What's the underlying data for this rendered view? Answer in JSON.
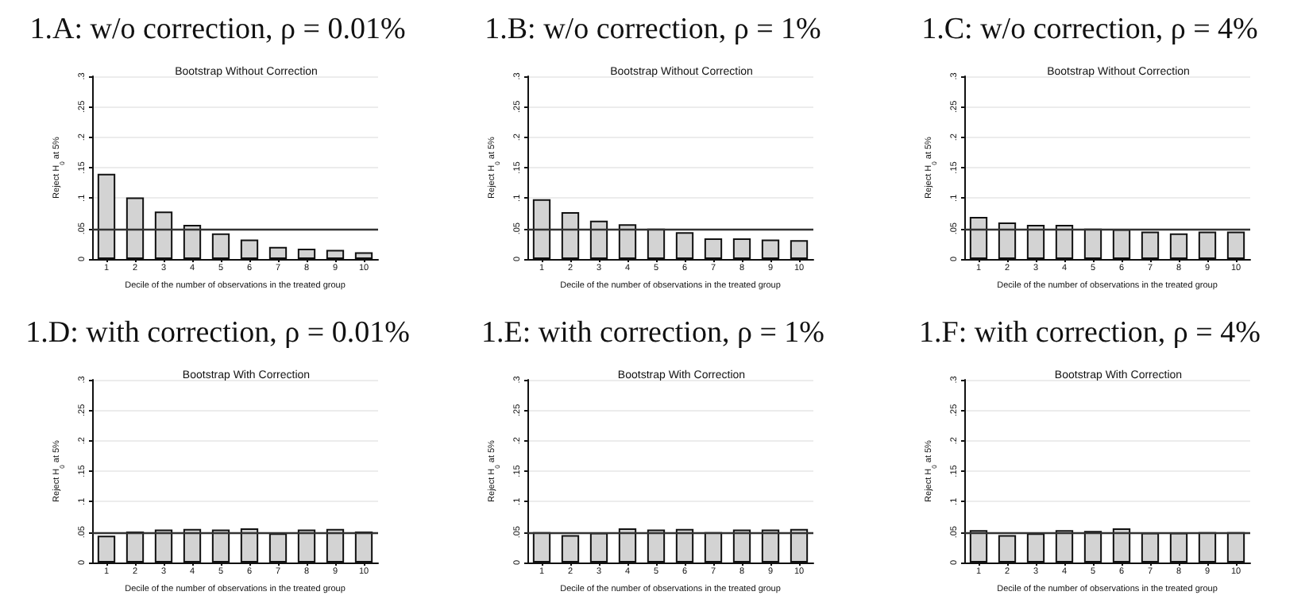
{
  "chart_data": [
    {
      "type": "bar",
      "title": "1.A: w/o correction, ρ = 0.01%",
      "subtitle": "Bootstrap Without Correction",
      "xlabel": "Decile of the number of observations in the treated group",
      "ylabel": "Reject H$_{0}$ at 5%",
      "categories": [
        "1",
        "2",
        "3",
        "4",
        "5",
        "6",
        "7",
        "8",
        "9",
        "10"
      ],
      "color": "#d3d3d3",
      "values": [
        0.14,
        0.101,
        0.078,
        0.056,
        0.042,
        0.032,
        0.02,
        0.017,
        0.015,
        0.011
      ],
      "ylim": [
        0,
        0.3
      ],
      "yticks": [
        {
          "value": 0,
          "label": "0"
        },
        {
          "value": 0.05,
          "label": ".05"
        },
        {
          "value": 0.1,
          "label": ".1"
        },
        {
          "value": 0.15,
          "label": ".15"
        },
        {
          "value": 0.2,
          "label": ".2"
        },
        {
          "value": 0.25,
          "label": ".25"
        },
        {
          "value": 0.3,
          "label": ".3"
        }
      ],
      "grid": "y",
      "ref_lines": [
        {
          "axis": "y",
          "value": 0.05,
          "color": "#333333"
        }
      ]
    },
    {
      "type": "bar",
      "title": "1.B: w/o correction, ρ = 1%",
      "subtitle": "Bootstrap Without Correction",
      "xlabel": "Decile of the number of observations in the treated group",
      "ylabel": "Reject H$_{0}$ at 5%",
      "categories": [
        "1",
        "2",
        "3",
        "4",
        "5",
        "6",
        "7",
        "8",
        "9",
        "10"
      ],
      "color": "#d3d3d3",
      "values": [
        0.098,
        0.077,
        0.063,
        0.057,
        0.05,
        0.044,
        0.034,
        0.034,
        0.032,
        0.031
      ],
      "ylim": [
        0,
        0.3
      ],
      "yticks": [
        {
          "value": 0,
          "label": "0"
        },
        {
          "value": 0.05,
          "label": ".05"
        },
        {
          "value": 0.1,
          "label": ".1"
        },
        {
          "value": 0.15,
          "label": ".15"
        },
        {
          "value": 0.2,
          "label": ".2"
        },
        {
          "value": 0.25,
          "label": ".25"
        },
        {
          "value": 0.3,
          "label": ".3"
        }
      ],
      "grid": "y",
      "ref_lines": [
        {
          "axis": "y",
          "value": 0.05,
          "color": "#333333"
        }
      ]
    },
    {
      "type": "bar",
      "title": "1.C: w/o correction, ρ = 4%",
      "subtitle": "Bootstrap Without Correction",
      "xlabel": "Decile of the number of observations in the treated group",
      "ylabel": "Reject H$_{0}$ at 5%",
      "categories": [
        "1",
        "2",
        "3",
        "4",
        "5",
        "6",
        "7",
        "8",
        "9",
        "10"
      ],
      "color": "#d3d3d3",
      "values": [
        0.069,
        0.06,
        0.056,
        0.056,
        0.05,
        0.049,
        0.045,
        0.042,
        0.045,
        0.045
      ],
      "ylim": [
        0,
        0.3
      ],
      "yticks": [
        {
          "value": 0,
          "label": "0"
        },
        {
          "value": 0.05,
          "label": ".05"
        },
        {
          "value": 0.1,
          "label": ".1"
        },
        {
          "value": 0.15,
          "label": ".15"
        },
        {
          "value": 0.2,
          "label": ".2"
        },
        {
          "value": 0.25,
          "label": ".25"
        },
        {
          "value": 0.3,
          "label": ".3"
        }
      ],
      "grid": "y",
      "ref_lines": [
        {
          "axis": "y",
          "value": 0.05,
          "color": "#333333"
        }
      ]
    },
    {
      "type": "bar",
      "title": "1.D: with correction, ρ = 0.01%",
      "subtitle": "Bootstrap With Correction",
      "xlabel": "Decile of the number of observations in the treated group",
      "ylabel": "Reject H$_{0}$ at 5%",
      "categories": [
        "1",
        "2",
        "3",
        "4",
        "5",
        "6",
        "7",
        "8",
        "9",
        "10"
      ],
      "color": "#d3d3d3",
      "values": [
        0.044,
        0.051,
        0.054,
        0.055,
        0.054,
        0.056,
        0.048,
        0.054,
        0.055,
        0.051
      ],
      "ylim": [
        0,
        0.3
      ],
      "yticks": [
        {
          "value": 0,
          "label": "0"
        },
        {
          "value": 0.05,
          "label": ".05"
        },
        {
          "value": 0.1,
          "label": ".1"
        },
        {
          "value": 0.15,
          "label": ".15"
        },
        {
          "value": 0.2,
          "label": ".2"
        },
        {
          "value": 0.25,
          "label": ".25"
        },
        {
          "value": 0.3,
          "label": ".3"
        }
      ],
      "grid": "y",
      "ref_lines": [
        {
          "axis": "y",
          "value": 0.05,
          "color": "#333333"
        }
      ]
    },
    {
      "type": "bar",
      "title": "1.E: with correction, ρ = 1%",
      "subtitle": "Bootstrap With Correction",
      "xlabel": "Decile of the number of observations in the treated group",
      "ylabel": "Reject H$_{0}$ at 5%",
      "categories": [
        "1",
        "2",
        "3",
        "4",
        "5",
        "6",
        "7",
        "8",
        "9",
        "10"
      ],
      "color": "#d3d3d3",
      "values": [
        0.05,
        0.045,
        0.049,
        0.056,
        0.054,
        0.055,
        0.05,
        0.054,
        0.054,
        0.055
      ],
      "ylim": [
        0,
        0.3
      ],
      "yticks": [
        {
          "value": 0,
          "label": "0"
        },
        {
          "value": 0.05,
          "label": ".05"
        },
        {
          "value": 0.1,
          "label": ".1"
        },
        {
          "value": 0.15,
          "label": ".15"
        },
        {
          "value": 0.2,
          "label": ".2"
        },
        {
          "value": 0.25,
          "label": ".25"
        },
        {
          "value": 0.3,
          "label": ".3"
        }
      ],
      "grid": "y",
      "ref_lines": [
        {
          "axis": "y",
          "value": 0.05,
          "color": "#333333"
        }
      ]
    },
    {
      "type": "bar",
      "title": "1.F: with correction, ρ = 4%",
      "subtitle": "Bootstrap With Correction",
      "xlabel": "Decile of the number of observations in the treated group",
      "ylabel": "Reject H$_{0}$ at 5%",
      "categories": [
        "1",
        "2",
        "3",
        "4",
        "5",
        "6",
        "7",
        "8",
        "9",
        "10"
      ],
      "color": "#d3d3d3",
      "values": [
        0.053,
        0.045,
        0.048,
        0.053,
        0.052,
        0.056,
        0.049,
        0.049,
        0.05,
        0.05
      ],
      "ylim": [
        0,
        0.3
      ],
      "yticks": [
        {
          "value": 0,
          "label": "0"
        },
        {
          "value": 0.05,
          "label": ".05"
        },
        {
          "value": 0.1,
          "label": ".1"
        },
        {
          "value": 0.15,
          "label": ".15"
        },
        {
          "value": 0.2,
          "label": ".2"
        },
        {
          "value": 0.25,
          "label": ".25"
        },
        {
          "value": 0.3,
          "label": ".3"
        }
      ],
      "grid": "y",
      "ref_lines": [
        {
          "axis": "y",
          "value": 0.05,
          "color": "#333333"
        }
      ]
    }
  ]
}
